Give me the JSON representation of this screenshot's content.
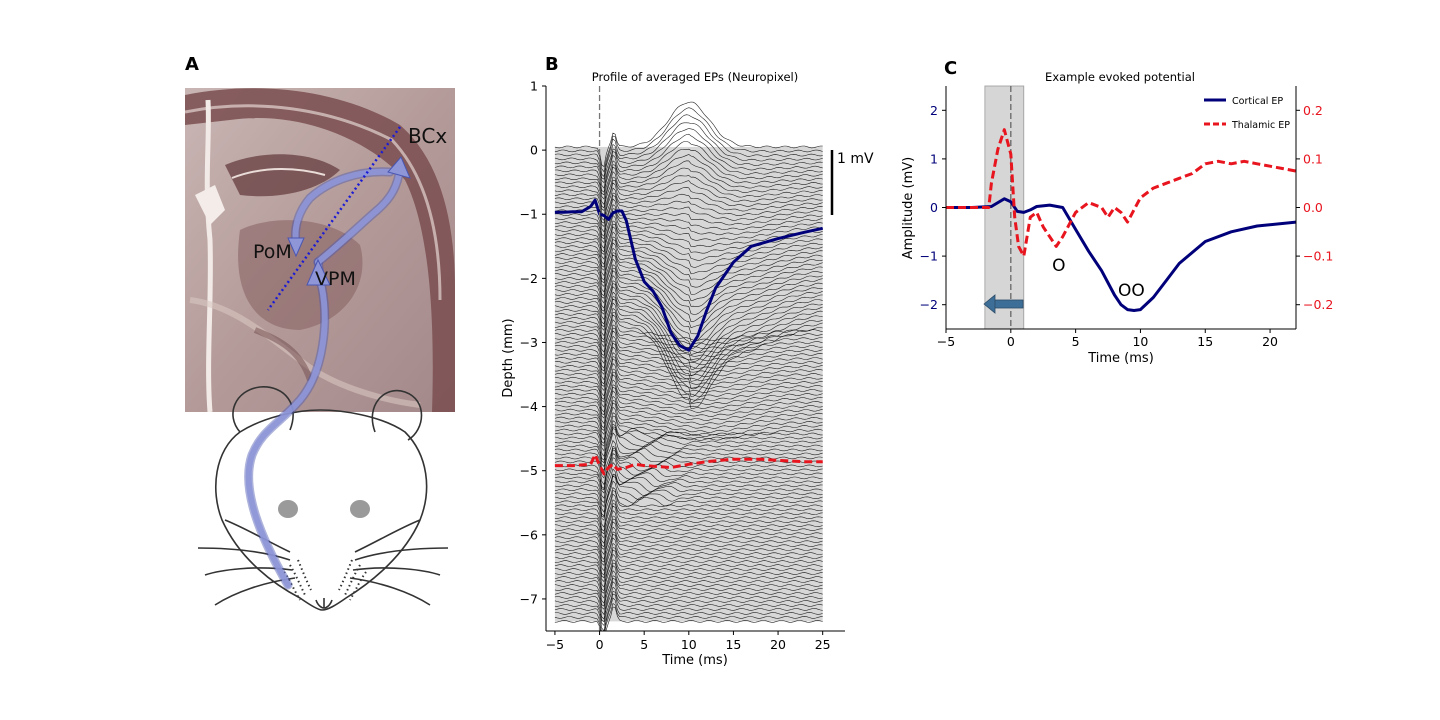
{
  "panels": {
    "a": {
      "letter": "A",
      "labels": {
        "bcx": "BCx",
        "pom": "PoM",
        "vpm": "VPM"
      },
      "colors": {
        "pathway": "#8e96d8",
        "probe": "#1b1bd6",
        "slice": "#7a5455"
      }
    },
    "b": {
      "letter": "B",
      "chart_data": {
        "type": "line",
        "title": "Profile of averaged EPs (Neuropixel)",
        "xlabel": "Time (ms)",
        "ylabel": "Depth (mm)",
        "xlim": [
          -6,
          27.5
        ],
        "ylim": [
          -7.5,
          1.0
        ],
        "xticks": [
          -5,
          0,
          5,
          10,
          15,
          20,
          25
        ],
        "yticks": [
          1,
          0,
          -1,
          -2,
          -3,
          -4,
          -5,
          -6,
          -7
        ],
        "stimulus_time_ms": 0,
        "scale_bar_label": "1 mV",
        "num_channels": 120,
        "series": [
          {
            "color": "#00007a",
            "x": [
              -5,
              -4,
              -3,
              -2,
              -1,
              -0.5,
              0,
              0.5,
              1,
              1.5,
              2,
              2.5,
              3,
              4,
              5,
              6,
              7,
              8,
              9,
              10,
              11,
              12,
              13,
              14,
              15,
              17,
              20,
              23,
              25
            ],
            "y": [
              -0.97,
              -0.97,
              -0.96,
              -0.96,
              -0.88,
              -0.78,
              -1.0,
              -1.02,
              -1.08,
              -0.98,
              -0.95,
              -0.95,
              -1.1,
              -1.7,
              -2.05,
              -2.2,
              -2.45,
              -2.85,
              -3.05,
              -3.12,
              -2.9,
              -2.5,
              -2.15,
              -1.95,
              -1.75,
              -1.5,
              -1.38,
              -1.28,
              -1.22
            ]
          },
          {
            "color": "#e8141e",
            "dashed": true,
            "x": [
              -5,
              -3,
              -1,
              -0.5,
              0,
              0.5,
              1,
              1.5,
              2,
              3,
              4,
              5,
              6,
              8,
              10,
              12,
              15,
              18,
              20,
              23,
              25
            ],
            "y": [
              -4.92,
              -4.92,
              -4.9,
              -4.75,
              -4.92,
              -5.05,
              -4.95,
              -4.9,
              -4.98,
              -4.95,
              -4.9,
              -4.92,
              -4.93,
              -4.95,
              -4.9,
              -4.86,
              -4.82,
              -4.82,
              -4.84,
              -4.86,
              -4.86
            ]
          }
        ]
      }
    },
    "c": {
      "letter": "C",
      "chart_data": {
        "type": "line",
        "title": "Example evoked potential",
        "xlabel": "Time (ms)",
        "ylabel": "Amplitude (mV)",
        "xlim": [
          -5,
          22
        ],
        "ylim": [
          -2.5,
          2.5
        ],
        "y2lim": [
          -0.25,
          0.25
        ],
        "xticks": [
          -5,
          0,
          5,
          10,
          15,
          20
        ],
        "yticks": [
          2,
          1,
          0,
          -1,
          -2
        ],
        "y2ticks": [
          0.2,
          0.1,
          0.0,
          -0.1,
          -0.2
        ],
        "shaded_region_ms": [
          -2,
          1
        ],
        "stimulus_time_ms": 0,
        "legend_placement": "top-right",
        "annotations": [
          {
            "text": "O",
            "x": 3.7,
            "y": -1.18
          },
          {
            "text": "OO",
            "x": 9.3,
            "y": -1.7
          }
        ],
        "series": [
          {
            "name": "Cortical EP",
            "axis": "left",
            "color": "#00007a",
            "x": [
              -5,
              -3,
              -1.5,
              -1,
              -0.5,
              0,
              0.5,
              1,
              1.5,
              2,
              3,
              4,
              5,
              6,
              7,
              8,
              8.5,
              9,
              9.5,
              10,
              11,
              12,
              13,
              15,
              17,
              19,
              22
            ],
            "y": [
              0.0,
              0.0,
              0.02,
              0.1,
              0.18,
              0.12,
              -0.08,
              -0.1,
              -0.05,
              0.02,
              0.05,
              0.0,
              -0.45,
              -0.9,
              -1.3,
              -1.8,
              -2.0,
              -2.1,
              -2.12,
              -2.1,
              -1.85,
              -1.5,
              -1.15,
              -0.7,
              -0.5,
              -0.38,
              -0.3
            ]
          },
          {
            "name": "Thalamic EP",
            "axis": "right",
            "color": "#e8141e",
            "dashed": true,
            "x": [
              -5,
              -3,
              -1.7,
              -1.5,
              -1,
              -0.5,
              0,
              0.3,
              0.6,
              1,
              1.5,
              2,
              2.5,
              3,
              3.5,
              4,
              5,
              6,
              7,
              7.5,
              8,
              8.5,
              9,
              10,
              11,
              12,
              13,
              14,
              15,
              16,
              17,
              18,
              19,
              20,
              21,
              22
            ],
            "y": [
              0.0,
              0.0,
              0.0,
              0.05,
              0.12,
              0.16,
              0.11,
              -0.02,
              -0.08,
              -0.1,
              -0.02,
              -0.01,
              -0.04,
              -0.06,
              -0.08,
              -0.06,
              -0.01,
              0.01,
              0.0,
              -0.02,
              0.0,
              -0.01,
              -0.03,
              0.02,
              0.04,
              0.05,
              0.06,
              0.07,
              0.09,
              0.095,
              0.09,
              0.095,
              0.09,
              0.085,
              0.08,
              0.075
            ]
          }
        ]
      }
    }
  }
}
